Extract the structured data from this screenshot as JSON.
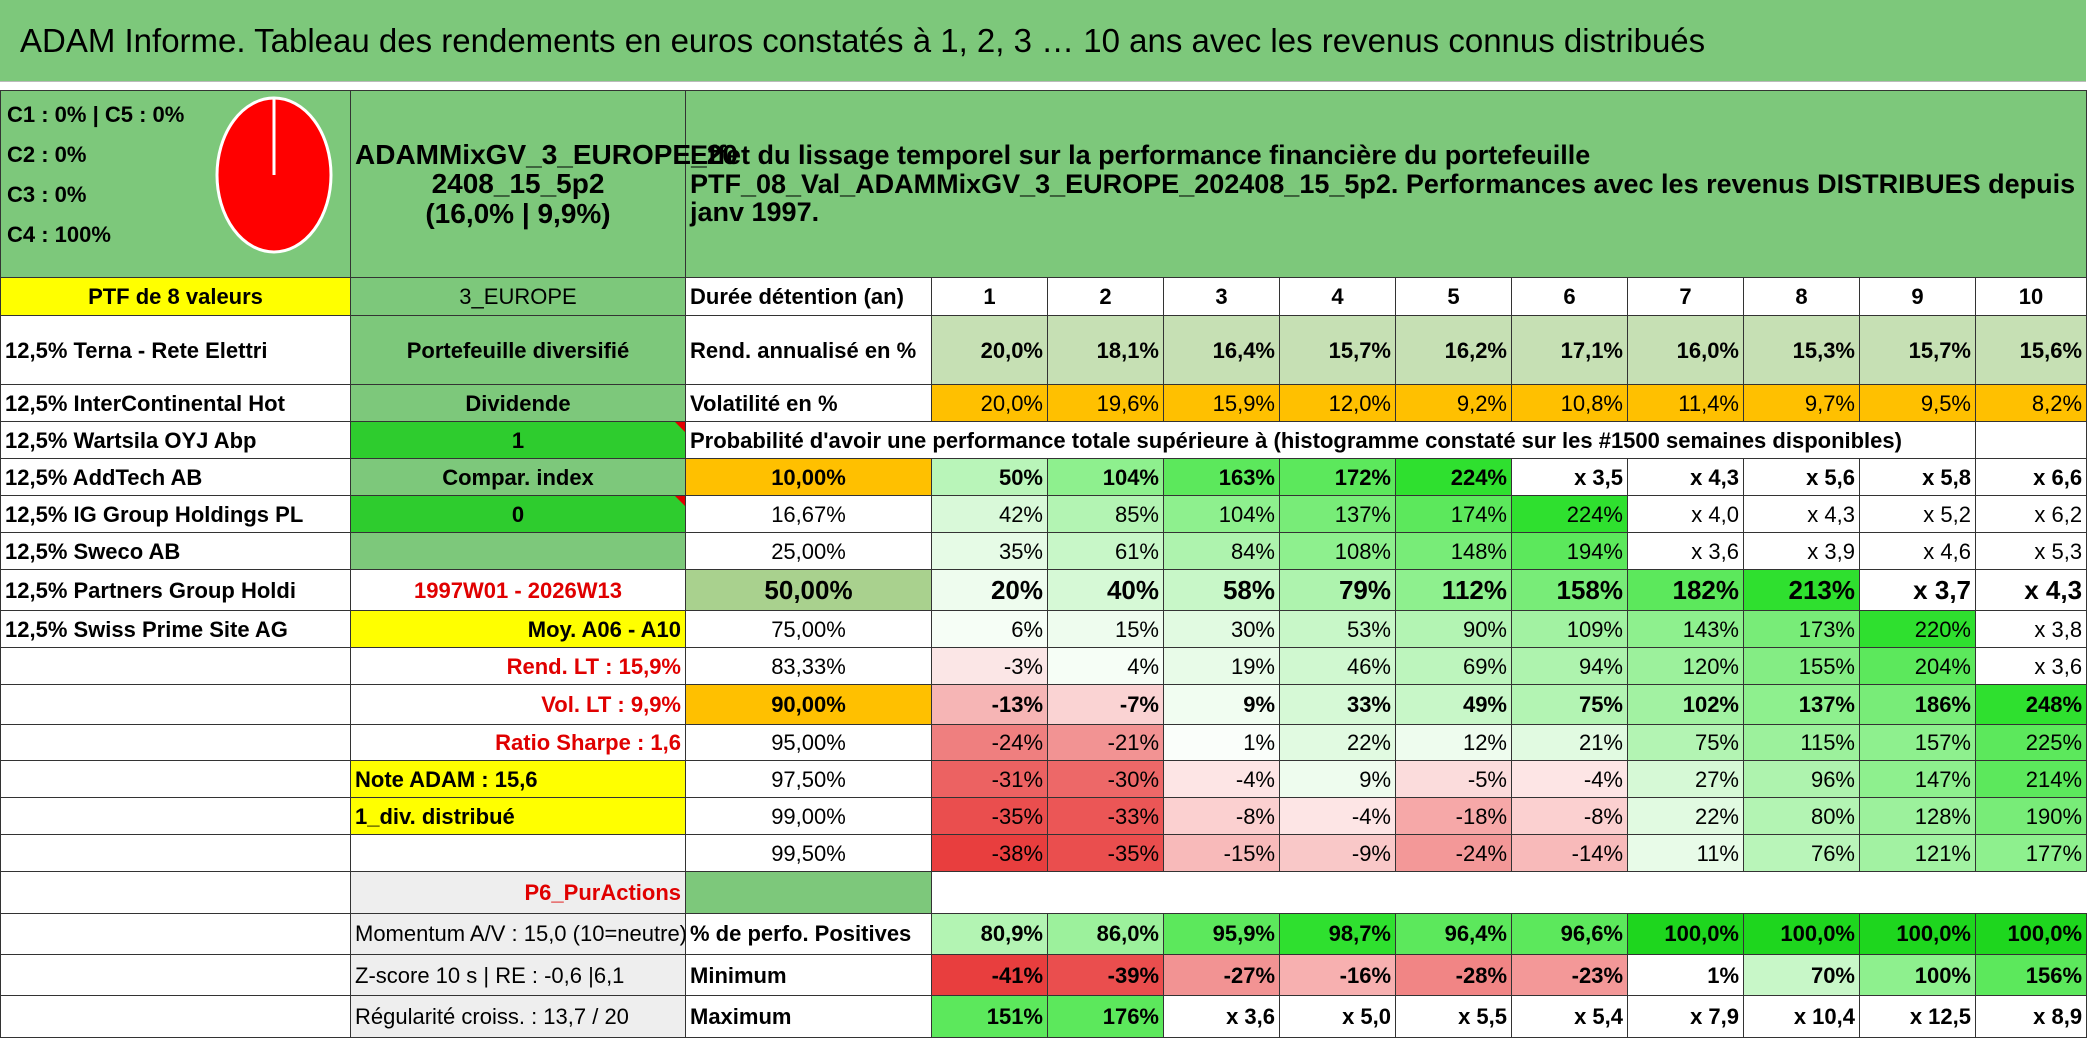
{
  "title": "ADAM Informe. Tableau des rendements en euros constatés à 1, 2, 3 … 10 ans avec les revenus connus distribués",
  "allocation": {
    "l1": "C1 : 0% | C5 : 0%",
    "l2": "C2 : 0%",
    "l3": "C3 : 0%",
    "l4": "C4 : 100%"
  },
  "allocation_chart": {
    "colors": {
      "fill": "#ff0000",
      "stroke": "#ffffff"
    },
    "c4_share": 100
  },
  "portfolio": {
    "name1": "ADAMMixGV_3_EUROPE_20",
    "name2": "2408_15_5p2",
    "stats": "(16,0% | 9,9%)"
  },
  "description": {
    "line1": "Effet du lissage temporel sur la performance financière du portefeuille",
    "line2": "PTF_08_Val_ADAMMixGV_3_EUROPE_202408_15_5p2. Performances avec les revenus DISTRIBUES depuis janv 1997."
  },
  "left": {
    "header": "PTF de 8 valeurs",
    "holdings": [
      "12,5% Terna - Rete Elettri",
      "12,5% InterContinental Hot",
      "12,5% Wartsila OYJ Abp",
      "12,5% AddTech AB",
      "12,5% IG Group Holdings PL",
      "12,5% Sweco AB",
      "12,5% Partners Group Holdi",
      "12,5% Swiss Prime Site AG"
    ]
  },
  "mid": {
    "region": "3_EUROPE",
    "type": "Portefeuille diversifié",
    "dividend": "Dividende",
    "one": "1",
    "compar": "Compar. index",
    "zero": "0",
    "period": "1997W01 - 2026W13",
    "moy": "Moy. A06 - A10",
    "rend_lt": "Rend. LT : 15,9%",
    "vol_lt": "Vol. LT : 9,9%",
    "sharpe": "Ratio Sharpe : 1,6",
    "note": "Note ADAM : 15,6",
    "div": "1_div. distribué",
    "p6": "P6_PurActions",
    "momentum": "Momentum A/V : 15,0 (10=neutre)",
    "zscore": "Z-score 10 s | RE : -0,6 |6,1",
    "regularite": "Régularité croiss. : 13,7 / 20"
  },
  "table": {
    "duration_label": "Durée détention (an)",
    "years": [
      "1",
      "2",
      "3",
      "4",
      "5",
      "6",
      "7",
      "8",
      "9",
      "10"
    ],
    "rend_label": "Rend. annualisé en %",
    "rend": [
      "20,0%",
      "18,1%",
      "16,4%",
      "15,7%",
      "16,2%",
      "17,1%",
      "16,0%",
      "15,3%",
      "15,7%",
      "15,6%"
    ],
    "vol_label": "Volatilité en %",
    "vol": [
      "20,0%",
      "19,6%",
      "15,9%",
      "12,0%",
      "9,2%",
      "10,8%",
      "11,4%",
      "9,7%",
      "9,5%",
      "8,2%"
    ],
    "prob_label": "Probabilité d'avoir une performance totale supérieure à (histogramme constaté sur les #1500 semaines disponibles)",
    "prob_rows": [
      {
        "p": "10,00%",
        "v": [
          "50%",
          "104%",
          "163%",
          "172%",
          "224%",
          "x 3,5",
          "x 4,3",
          "x 5,6",
          "x 5,8",
          "x 6,6"
        ]
      },
      {
        "p": "16,67%",
        "v": [
          "42%",
          "85%",
          "104%",
          "137%",
          "174%",
          "224%",
          "x 4,0",
          "x 4,3",
          "x 5,2",
          "x 6,2"
        ]
      },
      {
        "p": "25,00%",
        "v": [
          "35%",
          "61%",
          "84%",
          "108%",
          "148%",
          "194%",
          "x 3,6",
          "x 3,9",
          "x 4,6",
          "x 5,3"
        ]
      },
      {
        "p": "50,00%",
        "v": [
          "20%",
          "40%",
          "58%",
          "79%",
          "112%",
          "158%",
          "182%",
          "213%",
          "x 3,7",
          "x 4,3"
        ]
      },
      {
        "p": "75,00%",
        "v": [
          "6%",
          "15%",
          "30%",
          "53%",
          "90%",
          "109%",
          "143%",
          "173%",
          "220%",
          "x 3,8"
        ]
      },
      {
        "p": "83,33%",
        "v": [
          "-3%",
          "4%",
          "19%",
          "46%",
          "69%",
          "94%",
          "120%",
          "155%",
          "204%",
          "x 3,6"
        ]
      },
      {
        "p": "90,00%",
        "v": [
          "-13%",
          "-7%",
          "9%",
          "33%",
          "49%",
          "75%",
          "102%",
          "137%",
          "186%",
          "248%"
        ]
      },
      {
        "p": "95,00%",
        "v": [
          "-24%",
          "-21%",
          "1%",
          "22%",
          "12%",
          "21%",
          "75%",
          "115%",
          "157%",
          "225%"
        ]
      },
      {
        "p": "97,50%",
        "v": [
          "-31%",
          "-30%",
          "-4%",
          "9%",
          "-5%",
          "-4%",
          "27%",
          "96%",
          "147%",
          "214%"
        ]
      },
      {
        "p": "99,00%",
        "v": [
          "-35%",
          "-33%",
          "-8%",
          "-4%",
          "-18%",
          "-8%",
          "22%",
          "80%",
          "128%",
          "190%"
        ]
      },
      {
        "p": "99,50%",
        "v": [
          "-38%",
          "-35%",
          "-15%",
          "-9%",
          "-24%",
          "-14%",
          "11%",
          "76%",
          "121%",
          "177%"
        ]
      }
    ],
    "pos_label": "% de perfo. Positives",
    "pos": [
      "80,9%",
      "86,0%",
      "95,9%",
      "98,7%",
      "96,4%",
      "96,6%",
      "100,0%",
      "100,0%",
      "100,0%",
      "100,0%"
    ],
    "min_label": "Minimum",
    "min": [
      "-41%",
      "-39%",
      "-27%",
      "-16%",
      "-28%",
      "-23%",
      "1%",
      "70%",
      "100%",
      "156%"
    ],
    "max_label": "Maximum",
    "max": [
      "151%",
      "176%",
      "x 3,6",
      "x 5,0",
      "x 5,5",
      "x 5,4",
      "x 7,9",
      "x 10,4",
      "x 12,5",
      "x 8,9"
    ]
  },
  "colors": {
    "rend_bg": "#c6e0b4",
    "vol_bg": "#ffc000",
    "prob": [
      [
        "#b9f5b9",
        "#8ef08e",
        "#5ce85c",
        "#5ce85c",
        "#2fe02f",
        "#ffffff",
        "#ffffff",
        "#ffffff",
        "#ffffff",
        "#ffffff"
      ],
      [
        "#d9f9d9",
        "#b3f4b3",
        "#8ef08e",
        "#78ec78",
        "#5ce85c",
        "#2fe02f",
        "#ffffff",
        "#ffffff",
        "#ffffff",
        "#ffffff"
      ],
      [
        "#e6fbe6",
        "#c8f7c8",
        "#aef3ae",
        "#8ef08e",
        "#78ec78",
        "#5ce85c",
        "#ffffff",
        "#ffffff",
        "#ffffff",
        "#ffffff"
      ],
      [
        "#eefcee",
        "#d6f9d6",
        "#c8f7c8",
        "#aef3ae",
        "#8ef08e",
        "#78ec78",
        "#5ce85c",
        "#2fe02f",
        "#ffffff",
        "#ffffff"
      ],
      [
        "#f6fef6",
        "#eefcee",
        "#e1fae1",
        "#c8f7c8",
        "#b3f4b3",
        "#a2f2a2",
        "#8ef08e",
        "#78ec78",
        "#2fe02f",
        "#ffffff"
      ],
      [
        "#fbe6e6",
        "#f6fef6",
        "#e8fbe8",
        "#d0f8d0",
        "#bdf5bd",
        "#aef3ae",
        "#9cf19c",
        "#84ed84",
        "#5ce85c",
        "#ffffff"
      ],
      [
        "#f6b5b5",
        "#fad3d3",
        "#f1fdf1",
        "#d6f9d6",
        "#c8f7c8",
        "#b3f4b3",
        "#a2f2a2",
        "#8ef08e",
        "#78ec78",
        "#2fe02f"
      ],
      [
        "#ef7f7f",
        "#f29393",
        "#fafefa",
        "#e1fae1",
        "#eefcee",
        "#e1fae1",
        "#b3f4b3",
        "#9cf19c",
        "#8ef08e",
        "#5ce85c"
      ],
      [
        "#ec6262",
        "#ed6868",
        "#fde5e5",
        "#eefcee",
        "#fbdcdc",
        "#fde5e5",
        "#d6f9d6",
        "#aef3ae",
        "#8ef08e",
        "#5ce85c"
      ],
      [
        "#ea4e4e",
        "#eb5656",
        "#fbd0d0",
        "#fde5e5",
        "#f6a8a8",
        "#fbd0d0",
        "#e1fae1",
        "#b3f4b3",
        "#9cf19c",
        "#78ec78"
      ],
      [
        "#e83e3e",
        "#ea4e4e",
        "#f8baba",
        "#f9c8c8",
        "#f39898",
        "#f8baba",
        "#e8fbe8",
        "#b9f5b9",
        "#a2f2a2",
        "#8ef08e"
      ]
    ],
    "pos": [
      "#b3f4b3",
      "#9cf19c",
      "#5ce85c",
      "#2fe02f",
      "#5ce85c",
      "#5ce85c",
      "#1ed61e",
      "#1ed61e",
      "#1ed61e",
      "#1ed61e"
    ],
    "min": [
      "#e83e3e",
      "#ea4e4e",
      "#f29393",
      "#f7b0b0",
      "#f18585",
      "#f39898",
      "#ffffff",
      "#c8f7c8",
      "#8ef08e",
      "#5ce85c"
    ],
    "max": [
      "#5ce85c",
      "#5ce85c",
      "#ffffff",
      "#ffffff",
      "#ffffff",
      "#ffffff",
      "#ffffff",
      "#ffffff",
      "#ffffff",
      "#ffffff"
    ]
  }
}
